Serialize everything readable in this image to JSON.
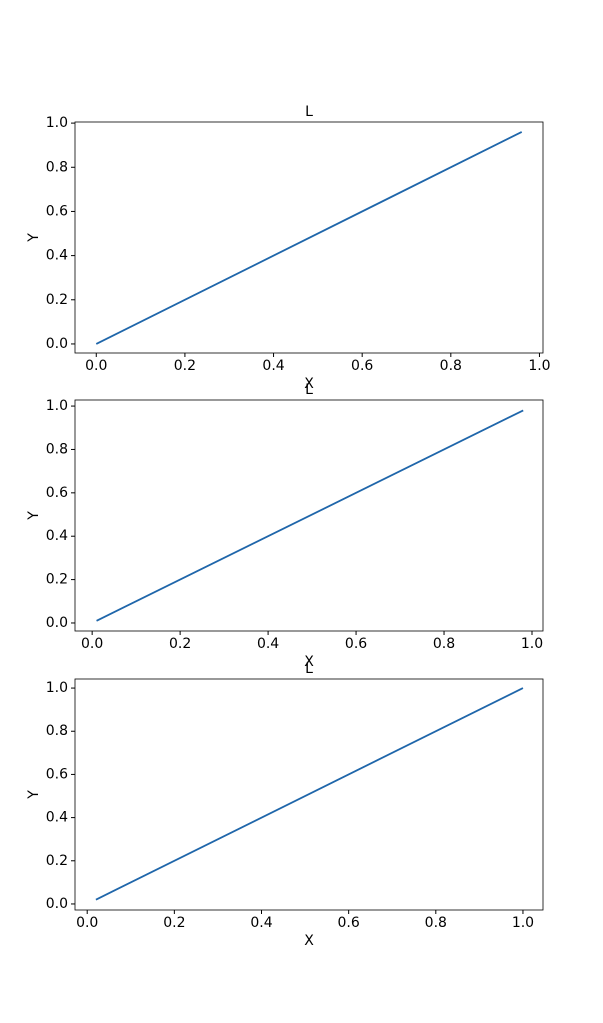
{
  "chart_data": [
    {
      "type": "line",
      "title": "L",
      "x_label": "X",
      "y_label": "Y",
      "x": [
        0.0,
        0.96
      ],
      "values": [
        0.0,
        0.96
      ],
      "color": "#1f66aa",
      "xlim": [
        -0.048,
        1.008
      ],
      "ylim": [
        -0.041,
        1.005
      ],
      "xticks": [
        {
          "value": 0,
          "label": "0.0"
        },
        0.2,
        0.4,
        0.6,
        0.8,
        {
          "value": 1,
          "label": "1.0"
        }
      ],
      "yticks": [
        {
          "value": 0,
          "label": "0.0"
        },
        0.2,
        0.4,
        0.6,
        0.8,
        {
          "value": 1,
          "label": "1.0"
        }
      ]
    },
    {
      "type": "line",
      "title": "L",
      "x_label": "X",
      "y_label": "Y",
      "x": [
        0.01,
        0.98
      ],
      "values": [
        0.01,
        0.98
      ],
      "color": "#1f66aa",
      "xlim": [
        -0.039,
        1.025
      ],
      "ylim": [
        -0.037,
        1.028
      ],
      "xticks": [
        {
          "value": 0,
          "label": "0.0"
        },
        0.2,
        0.4,
        0.6,
        0.8,
        {
          "value": 1,
          "label": "1.0"
        }
      ],
      "yticks": [
        {
          "value": 0,
          "label": "0.0"
        },
        0.2,
        0.4,
        0.6,
        0.8,
        {
          "value": 1,
          "label": "1.0"
        }
      ]
    },
    {
      "type": "line",
      "title": "L",
      "x_label": "X",
      "y_label": "Y",
      "x": [
        0.02,
        1.0
      ],
      "values": [
        0.02,
        1.0
      ],
      "color": "#1f66aa",
      "xlim": [
        -0.028,
        1.046
      ],
      "ylim": [
        -0.028,
        1.042
      ],
      "xticks": [
        {
          "value": 0,
          "label": "0.0"
        },
        0.2,
        0.4,
        0.6,
        0.8,
        {
          "value": 1,
          "label": "1.0"
        }
      ],
      "yticks": [
        {
          "value": 0,
          "label": "0.0"
        },
        0.2,
        0.4,
        0.6,
        0.8,
        {
          "value": 1,
          "label": "1.0"
        }
      ]
    }
  ]
}
